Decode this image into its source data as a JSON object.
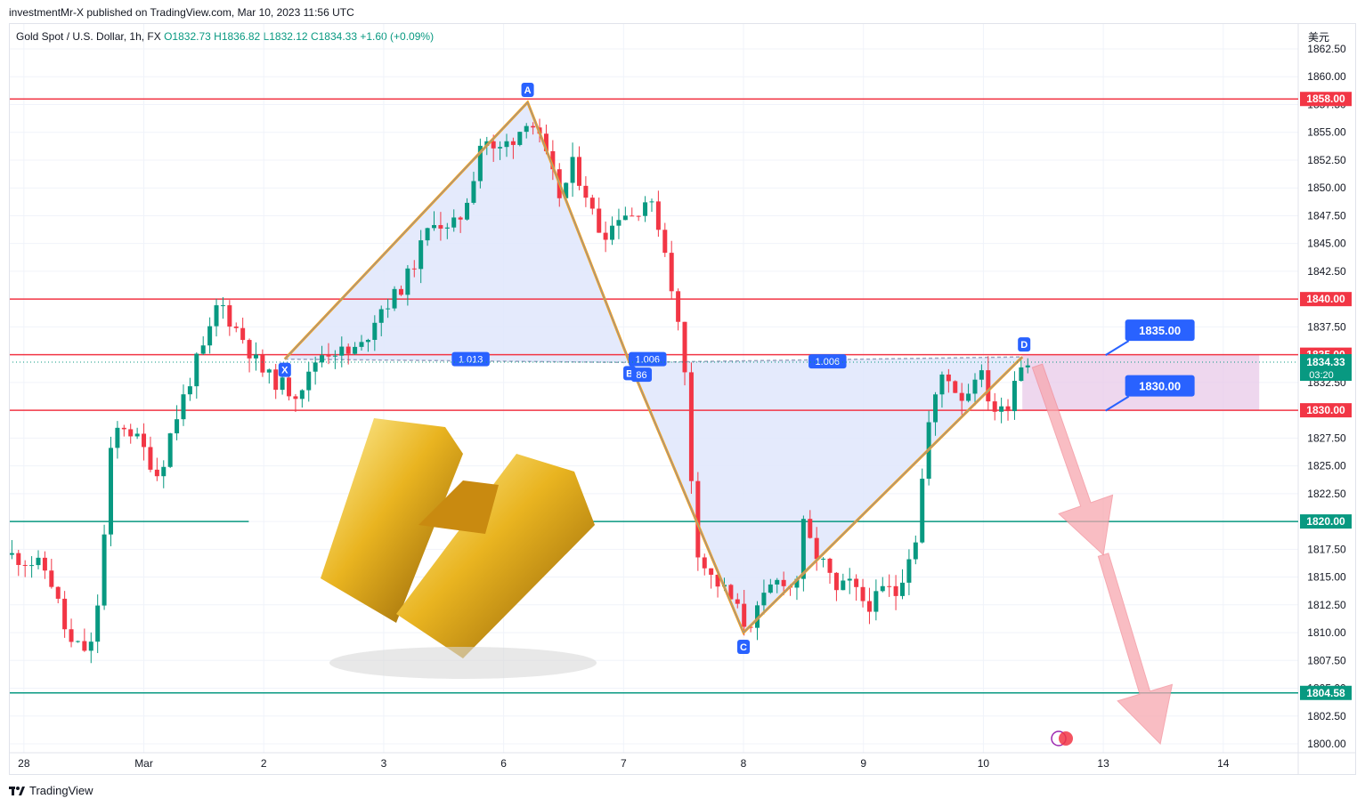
{
  "header": {
    "published": "investmentMr-X published on TradingView.com, Mar 10, 2023 11:56 UTC"
  },
  "legend": {
    "symbol": "Gold Spot / U.S. Dollar, 1h, FX",
    "open": "O1832.73",
    "high": "H1836.82",
    "low": "L1832.12",
    "close": "C1834.33",
    "change": "+1.60 (+0.09%)"
  },
  "currency": "美元",
  "footer": {
    "brand": "TradingView"
  },
  "colors": {
    "up": "#089981",
    "down": "#f23645",
    "resistance": "#f23645",
    "support": "#089981",
    "pattern_fill": "#dfe6fb",
    "pattern_line": "#f7a21b",
    "label_bg": "#2962ff",
    "zone": "#e8c9e8",
    "arrow": "#f7a8b0"
  },
  "chart_data": {
    "type": "candlestick",
    "symbol": "Gold Spot / U.S. Dollar",
    "timeframe": "1h",
    "ylim": [
      1800,
      1862.5
    ],
    "y_ticks": [
      "1862.50",
      "1860.00",
      "1857.50",
      "1855.00",
      "1852.50",
      "1850.00",
      "1847.50",
      "1845.00",
      "1842.50",
      "1840.00",
      "1837.50",
      "1835.00",
      "1832.50",
      "1830.00",
      "1827.50",
      "1825.00",
      "1822.50",
      "1820.00",
      "1817.50",
      "1815.00",
      "1812.50",
      "1810.00",
      "1807.50",
      "1805.00",
      "1802.50",
      "1800.00"
    ],
    "x_ticks": [
      {
        "label": "28",
        "x": 0.5
      },
      {
        "label": "Mar",
        "x": 4.5
      },
      {
        "label": "2",
        "x": 8.5
      },
      {
        "label": "3",
        "x": 12.5
      },
      {
        "label": "6",
        "x": 16.5
      },
      {
        "label": "7",
        "x": 20.5
      },
      {
        "label": "8",
        "x": 24.5
      },
      {
        "label": "9",
        "x": 28.5
      },
      {
        "label": "10",
        "x": 32.5
      },
      {
        "label": "13",
        "x": 36.5
      },
      {
        "label": "14",
        "x": 40.5
      }
    ],
    "x_range": [
      0,
      43
    ],
    "price_path": [
      [
        0.0,
        1817.0
      ],
      [
        0.8,
        1816.3
      ],
      [
        1.3,
        1815.5
      ],
      [
        1.6,
        1813.0
      ],
      [
        2.0,
        1809.0
      ],
      [
        2.5,
        1808.5
      ],
      [
        2.8,
        1808.8
      ],
      [
        3.1,
        1816.0
      ],
      [
        3.4,
        1826.0
      ],
      [
        3.7,
        1829.0
      ],
      [
        4.1,
        1828.0
      ],
      [
        4.6,
        1826.0
      ],
      [
        5.0,
        1824.0
      ],
      [
        5.4,
        1828.0
      ],
      [
        5.8,
        1831.0
      ],
      [
        6.2,
        1834.0
      ],
      [
        6.6,
        1836.0
      ],
      [
        7.0,
        1840.0
      ],
      [
        7.4,
        1838.0
      ],
      [
        7.8,
        1836.5
      ],
      [
        8.2,
        1834.5
      ],
      [
        8.6,
        1833.0
      ],
      [
        9.0,
        1832.5
      ],
      [
        9.5,
        1831.5
      ],
      [
        10.0,
        1833.0
      ],
      [
        10.3,
        1835.0
      ],
      [
        10.8,
        1835.5
      ],
      [
        11.3,
        1835.0
      ],
      [
        11.8,
        1835.8
      ],
      [
        12.3,
        1839.0
      ],
      [
        12.8,
        1840.0
      ],
      [
        13.3,
        1842.0
      ],
      [
        13.8,
        1845.0
      ],
      [
        14.2,
        1847.5
      ],
      [
        14.6,
        1846.0
      ],
      [
        15.0,
        1847.0
      ],
      [
        15.4,
        1850.0
      ],
      [
        15.8,
        1855.0
      ],
      [
        16.2,
        1853.0
      ],
      [
        16.6,
        1854.0
      ],
      [
        17.0,
        1855.0
      ],
      [
        17.3,
        1856.5
      ],
      [
        17.6,
        1855.0
      ],
      [
        18.0,
        1852.0
      ],
      [
        18.4,
        1849.0
      ],
      [
        18.8,
        1852.0
      ],
      [
        19.2,
        1850.0
      ],
      [
        19.6,
        1846.5
      ],
      [
        20.0,
        1846.0
      ],
      [
        20.4,
        1848.0
      ],
      [
        20.8,
        1847.5
      ],
      [
        21.2,
        1849.0
      ],
      [
        21.6,
        1847.5
      ],
      [
        22.0,
        1843.0
      ],
      [
        22.3,
        1838.0
      ],
      [
        22.6,
        1832.0
      ],
      [
        22.8,
        1822.0
      ],
      [
        23.0,
        1817.0
      ],
      [
        23.4,
        1815.0
      ],
      [
        23.8,
        1814.0
      ],
      [
        24.2,
        1812.5
      ],
      [
        24.6,
        1810.5
      ],
      [
        25.0,
        1812.0
      ],
      [
        25.4,
        1814.0
      ],
      [
        25.8,
        1815.0
      ],
      [
        26.2,
        1813.5
      ],
      [
        26.5,
        1819.5
      ],
      [
        26.8,
        1817.5
      ],
      [
        27.2,
        1816.0
      ],
      [
        27.6,
        1813.5
      ],
      [
        28.0,
        1814.5
      ],
      [
        28.4,
        1813.0
      ],
      [
        28.8,
        1812.5
      ],
      [
        29.2,
        1814.0
      ],
      [
        29.6,
        1813.5
      ],
      [
        30.0,
        1817.0
      ],
      [
        30.3,
        1819.0
      ],
      [
        30.6,
        1828.0
      ],
      [
        30.9,
        1831.0
      ],
      [
        31.2,
        1834.0
      ],
      [
        31.5,
        1832.0
      ],
      [
        31.9,
        1831.0
      ],
      [
        32.3,
        1834.0
      ],
      [
        32.7,
        1831.0
      ],
      [
        33.0,
        1829.5
      ],
      [
        33.3,
        1830.5
      ],
      [
        33.6,
        1833.5
      ],
      [
        33.9,
        1835.0
      ],
      [
        34.1,
        1834.3
      ]
    ],
    "horizontal_levels": [
      {
        "value": 1858.0,
        "label": "1858.00",
        "color": "red"
      },
      {
        "value": 1840.0,
        "label": "1840.00",
        "color": "red"
      },
      {
        "value": 1835.0,
        "label": "1835.00",
        "color": "red"
      },
      {
        "value": 1830.0,
        "label": "1830.00",
        "color": "red"
      },
      {
        "value": 1820.0,
        "label": "1820.00",
        "color": "green"
      },
      {
        "value": 1804.58,
        "label": "1804.58",
        "color": "green"
      }
    ],
    "last_price": {
      "value": 1834.33,
      "label": "1834.33",
      "countdown": "03:20"
    },
    "harmonic_pattern": {
      "points": [
        {
          "name": "X",
          "x": 9.2,
          "y": 1834.6
        },
        {
          "name": "A",
          "x": 17.3,
          "y": 1857.7
        },
        {
          "name": "B",
          "x": 20.7,
          "y": 1834.3
        },
        {
          "name": "C",
          "x": 24.5,
          "y": 1810.0
        },
        {
          "name": "D",
          "x": 33.8,
          "y": 1834.8
        }
      ],
      "ratios": [
        {
          "label": "1.013",
          "x": 15.4,
          "y": 1834.6
        },
        {
          "label": "86",
          "x": 21.1,
          "y": 1833.2
        },
        {
          "label": "1.006",
          "x": 21.3,
          "y": 1834.6
        },
        {
          "label": "1.006",
          "x": 27.3,
          "y": 1834.4
        }
      ]
    },
    "target_zone": {
      "from_x": 33.8,
      "to_x": 41.7,
      "low": 1830.0,
      "high": 1835.0
    },
    "callouts": [
      {
        "label": "1835.00",
        "x": 38.0,
        "y": 1837.2
      },
      {
        "label": "1830.00",
        "x": 38.0,
        "y": 1832.2
      }
    ],
    "projection_arrow": [
      [
        34.3,
        1834.0
      ],
      [
        36.5,
        1817.0
      ],
      [
        38.4,
        1800.0
      ]
    ]
  }
}
